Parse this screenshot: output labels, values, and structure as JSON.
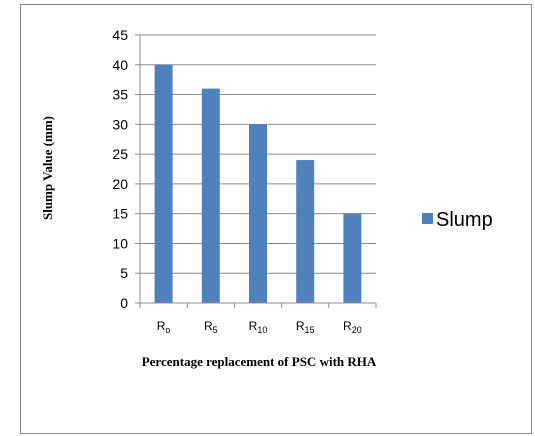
{
  "chart_data": {
    "type": "bar",
    "categories": [
      {
        "base": "R",
        "sub": "o"
      },
      {
        "base": "R",
        "sub": "5"
      },
      {
        "base": "R",
        "sub": "10"
      },
      {
        "base": "R",
        "sub": "15"
      },
      {
        "base": "R",
        "sub": "20"
      }
    ],
    "series": [
      {
        "name": "Slump",
        "color": "#4f81bd",
        "values": [
          40,
          36,
          30,
          24,
          15
        ]
      }
    ],
    "xlabel": "Percentage replacement of PSC with RHA",
    "ylabel": "Slump  Value (mm)",
    "ylim": [
      0,
      45
    ],
    "yticks": [
      0,
      5,
      10,
      15,
      20,
      25,
      30,
      35,
      40,
      45
    ],
    "grid": true,
    "legend_position": "right"
  }
}
